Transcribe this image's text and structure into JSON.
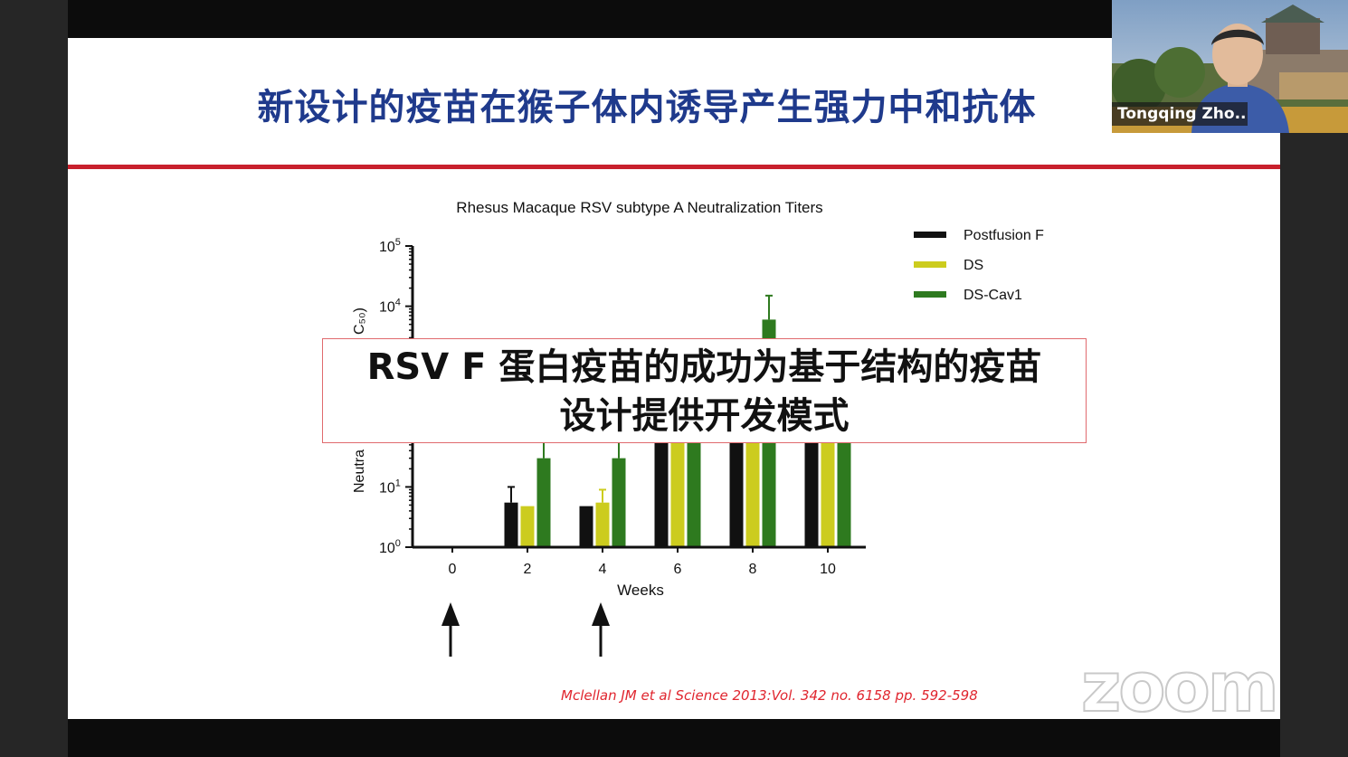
{
  "slide": {
    "title": "新设计的疫苗在猴子体内诱导产生强力中和抗体",
    "overlay_lines": [
      "RSV F 蛋白疫苗的成功为基于结构的疫苗",
      "设计提供开发模式"
    ],
    "citation": "Mclellan JM  et al Science 2013:Vol. 342 no. 6158 pp. 592-598"
  },
  "video": {
    "participant_name": "Tongqing Zho..."
  },
  "watermark": "zoom",
  "icons": {
    "arrow_up": "up-arrow-icon"
  },
  "chart_data": {
    "type": "bar",
    "title": "Rhesus Macaque RSV subtype A Neutralization Titers",
    "xlabel": "Weeks",
    "ylabel_visible_fragments": [
      "C₅₀)",
      "Neutra"
    ],
    "y_scale": "log",
    "ylim": [
      1,
      100000
    ],
    "y_ticks": [
      {
        "value": 1,
        "base": "10",
        "exp": "0"
      },
      {
        "value": 10,
        "base": "10",
        "exp": "1"
      },
      {
        "value": 10000,
        "base": "10",
        "exp": "4"
      },
      {
        "value": 100000,
        "base": "10",
        "exp": "5"
      }
    ],
    "categories": [
      "0",
      "2",
      "4",
      "6",
      "8",
      "10"
    ],
    "series": [
      {
        "name": "Postfusion F",
        "color": "#111111",
        "values": [
          null,
          5.5,
          4.8,
          1000,
          1000,
          1000
        ],
        "error_upper": [
          null,
          10,
          null,
          null,
          null,
          null
        ]
      },
      {
        "name": "DS",
        "color": "#cccc1e",
        "values": [
          null,
          4.8,
          5.5,
          2200,
          1000,
          1000
        ],
        "error_upper": [
          null,
          null,
          9,
          2300,
          null,
          null
        ]
      },
      {
        "name": "DS-Cav1",
        "color": "#2e7a1f",
        "values": [
          null,
          30,
          30,
          1000,
          6000,
          1000
        ],
        "error_upper": [
          null,
          60,
          60,
          null,
          15000,
          null
        ]
      }
    ],
    "immunization_arrows_at": [
      "0",
      "4"
    ],
    "legend_position": "top-right",
    "grid": false
  }
}
